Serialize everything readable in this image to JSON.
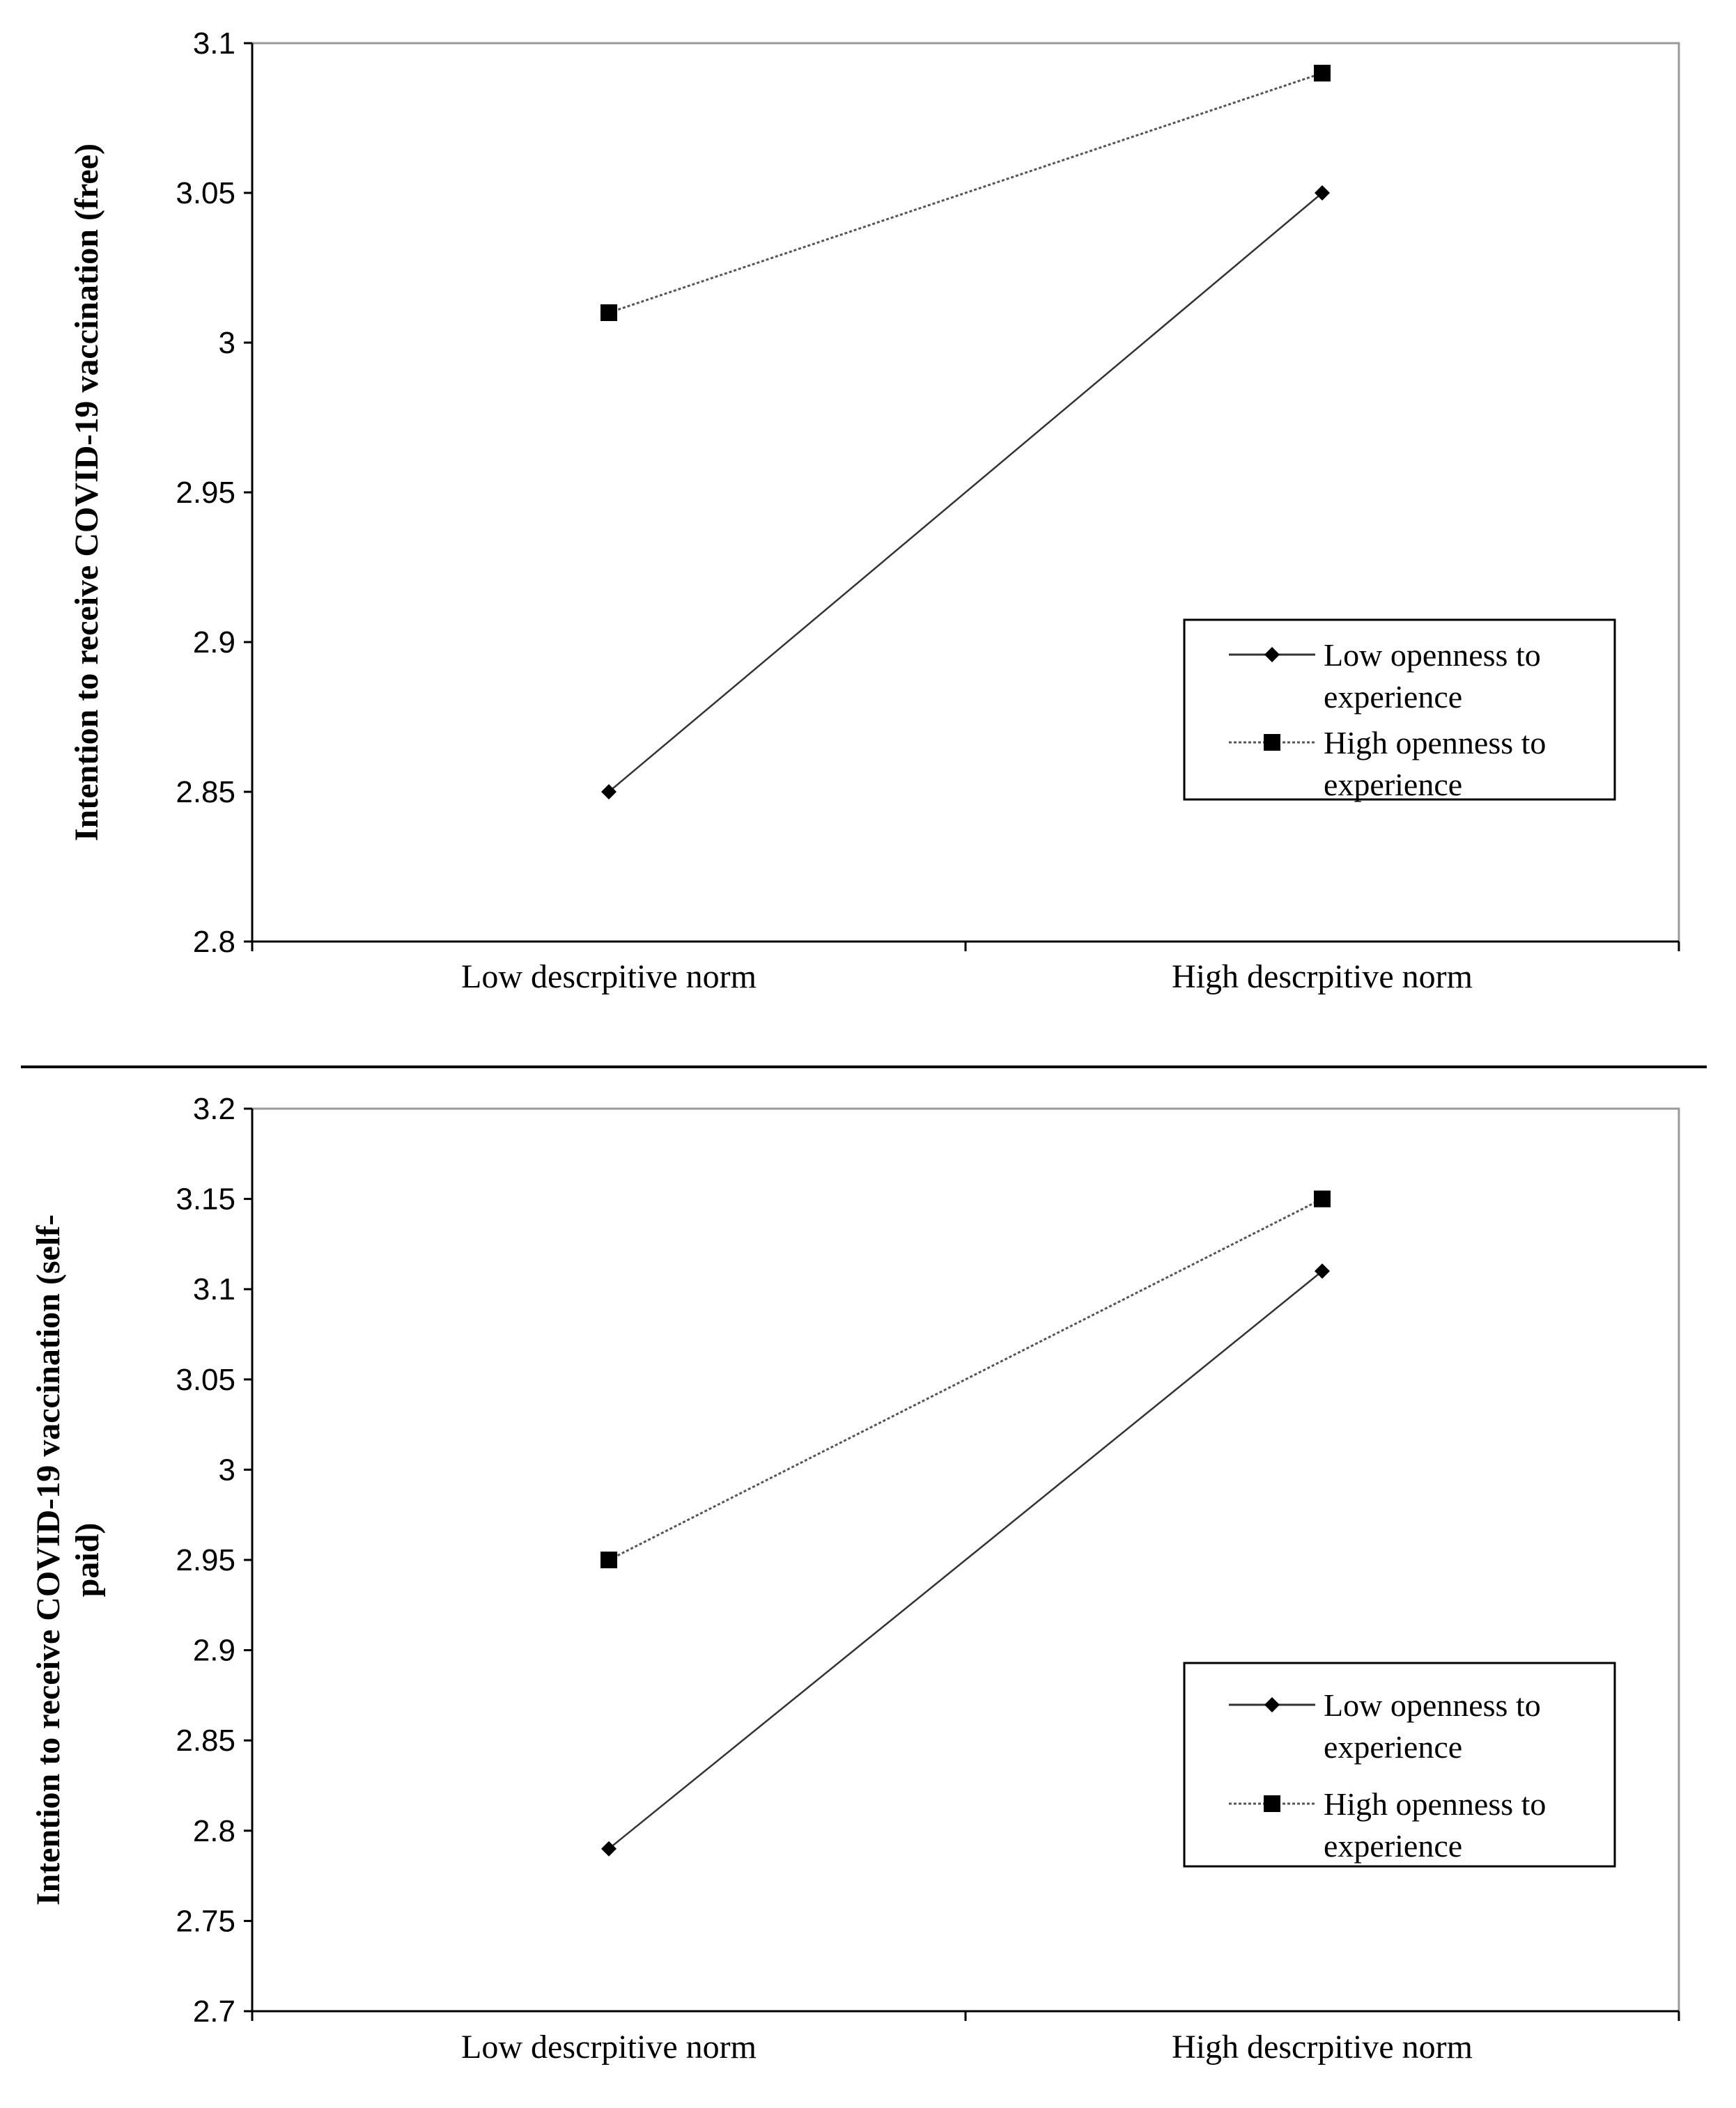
{
  "chart_data": [
    {
      "type": "line",
      "categories": [
        "Low descrpitive norm",
        "High descrpitive norm"
      ],
      "series": [
        {
          "name": "Low openness to experience",
          "legend_lines": [
            "Low openness to",
            "experience"
          ],
          "values": [
            2.85,
            3.05
          ],
          "marker": "diamond",
          "line_style": "solid"
        },
        {
          "name": "High openness to experience",
          "legend_lines": [
            "High openness to",
            "experience"
          ],
          "values": [
            3.01,
            3.09
          ],
          "marker": "square",
          "line_style": "dotted"
        }
      ],
      "ylabel_lines": [
        "Intention to receive COVID-19 vaccination (free)"
      ],
      "ylim": [
        2.8,
        3.1
      ],
      "yticks": [
        2.8,
        2.85,
        2.9,
        2.95,
        3,
        3.05,
        3.1
      ],
      "ytick_labels": [
        "2.8",
        "2.85",
        "2.9",
        "2.95",
        "3",
        "3.05",
        "3.1"
      ],
      "legend_position": "bottom-right",
      "grid": false
    },
    {
      "type": "line",
      "categories": [
        "Low descrpitive norm",
        "High descrpitive norm"
      ],
      "series": [
        {
          "name": "Low openness to experience",
          "legend_lines": [
            "Low openness to",
            "experience"
          ],
          "values": [
            2.79,
            3.11
          ],
          "marker": "diamond",
          "line_style": "solid"
        },
        {
          "name": "High openness to experience",
          "legend_lines": [
            "High openness to",
            "experience"
          ],
          "values": [
            2.95,
            3.15
          ],
          "marker": "square",
          "line_style": "dotted"
        }
      ],
      "ylabel_lines": [
        "Intention to receive COVID-19 vaccination (self-",
        "paid)"
      ],
      "ylim": [
        2.7,
        3.2
      ],
      "yticks": [
        2.7,
        2.75,
        2.8,
        2.85,
        2.9,
        2.95,
        3,
        3.05,
        3.1,
        3.15,
        3.2
      ],
      "ytick_labels": [
        "2.7",
        "2.75",
        "2.8",
        "2.85",
        "2.9",
        "2.95",
        "3",
        "3.05",
        "3.1",
        "3.15",
        "3.2"
      ],
      "legend_position": "bottom-right",
      "grid": false
    }
  ]
}
